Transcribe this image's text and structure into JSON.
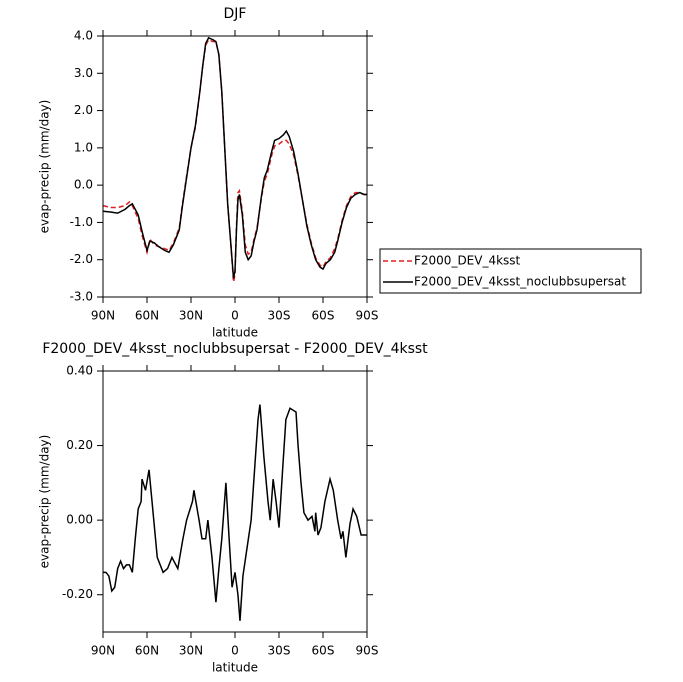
{
  "chart_data": [
    {
      "type": "line",
      "title": "DJF",
      "xlabel": "latitude",
      "ylabel": "evap-precip (mm/day)",
      "x": [
        90,
        85,
        80,
        75,
        72,
        70,
        66,
        63,
        60,
        58,
        55,
        52,
        48,
        45,
        42,
        38,
        36,
        33,
        30,
        27,
        24,
        22,
        20,
        18,
        15,
        13,
        11,
        9,
        7,
        5,
        3,
        1,
        0,
        -1,
        -2,
        -3,
        -5,
        -7,
        -9,
        -11,
        -13,
        -15,
        -18,
        -20,
        -22,
        -25,
        -27,
        -30,
        -33,
        -35,
        -37,
        -40,
        -43,
        -46,
        -49,
        -52,
        -55,
        -58,
        -60,
        -62,
        -65,
        -68,
        -70,
        -73,
        -76,
        -79,
        -82,
        -85,
        -88,
        -90
      ],
      "series": [
        {
          "name": "F2000_DEV_4ksst",
          "color": "#e02020",
          "style": "dashed",
          "values": [
            -0.55,
            -0.6,
            -0.6,
            -0.55,
            -0.45,
            -0.55,
            -0.9,
            -1.4,
            -1.8,
            -1.45,
            -1.6,
            -1.65,
            -1.7,
            -1.75,
            -1.55,
            -1.15,
            -0.55,
            0.25,
            1.0,
            1.55,
            2.5,
            3.2,
            3.75,
            3.9,
            3.85,
            3.85,
            3.5,
            2.5,
            1.0,
            -0.5,
            -1.5,
            -2.6,
            -2.4,
            -1.1,
            -0.2,
            -0.15,
            -0.7,
            -1.6,
            -1.85,
            -1.8,
            -1.45,
            -1.15,
            -0.35,
            0.1,
            0.3,
            0.8,
            1.05,
            1.1,
            1.2,
            1.2,
            1.1,
            0.8,
            0.25,
            -0.4,
            -1.05,
            -1.55,
            -1.95,
            -2.15,
            -2.2,
            -2.05,
            -1.95,
            -1.7,
            -1.45,
            -0.95,
            -0.55,
            -0.3,
            -0.2,
            -0.2,
            -0.25,
            -0.25
          ]
        },
        {
          "name": "F2000_DEV_4ksst_noclubbsupersat",
          "color": "#000000",
          "style": "solid",
          "values": [
            -0.7,
            -0.72,
            -0.75,
            -0.65,
            -0.55,
            -0.5,
            -0.8,
            -1.3,
            -1.75,
            -1.5,
            -1.55,
            -1.65,
            -1.75,
            -1.8,
            -1.6,
            -1.2,
            -0.6,
            0.2,
            1.0,
            1.6,
            2.5,
            3.2,
            3.8,
            3.95,
            3.9,
            3.85,
            3.5,
            2.5,
            1.0,
            -0.5,
            -1.5,
            -2.5,
            -2.3,
            -1.2,
            -0.4,
            -0.25,
            -0.8,
            -1.8,
            -2.0,
            -1.9,
            -1.5,
            -1.2,
            -0.3,
            0.2,
            0.4,
            0.9,
            1.2,
            1.25,
            1.35,
            1.45,
            1.3,
            0.9,
            0.3,
            -0.4,
            -1.1,
            -1.6,
            -2.0,
            -2.2,
            -2.25,
            -2.1,
            -2.0,
            -1.8,
            -1.5,
            -1.0,
            -0.6,
            -0.35,
            -0.25,
            -0.2,
            -0.25,
            -0.25
          ]
        }
      ],
      "xlim": [
        90,
        -90
      ],
      "xticks": [
        {
          "value": 90,
          "label": "90N"
        },
        {
          "value": 60,
          "label": "60N"
        },
        {
          "value": 30,
          "label": "30N"
        },
        0,
        {
          "value": -30,
          "label": "30S"
        },
        {
          "value": -60,
          "label": "60S"
        },
        {
          "value": -90,
          "label": "90S"
        }
      ],
      "ylim": [
        -3,
        4
      ],
      "yticks": [
        {
          "value": -3,
          "label": "-3.0"
        },
        {
          "value": -2,
          "label": "-2.0"
        },
        {
          "value": -1,
          "label": "-1.0"
        },
        {
          "value": 0,
          "label": "0.0"
        },
        {
          "value": 1,
          "label": "1.0"
        },
        {
          "value": 2,
          "label": "2.0"
        },
        {
          "value": 3,
          "label": "3.0"
        },
        {
          "value": 4,
          "label": "4.0"
        }
      ],
      "legend": "right"
    },
    {
      "type": "line",
      "title": "F2000_DEV_4ksst_noclubbsupersat - F2000_DEV_4ksst",
      "xlabel": "latitude",
      "ylabel": "evap-precip (mm/day)",
      "x": [
        90,
        88,
        86,
        84,
        82,
        80,
        78,
        76,
        74,
        72,
        70,
        68,
        66,
        64,
        63.4,
        61,
        58.6,
        53,
        49,
        46,
        43,
        39,
        35.5,
        33,
        29,
        28,
        24.5,
        22.5,
        20,
        18.5,
        15.7,
        13,
        11,
        9,
        6.2,
        4,
        2,
        0,
        -2,
        -3.4,
        -5.4,
        -8,
        -11,
        -13.6,
        -15.7,
        -17,
        -19.7,
        -22.5,
        -24,
        -26,
        -28,
        -30,
        -32.7,
        -34.7,
        -37.5,
        -41.6,
        -43,
        -45,
        -47,
        -49.8,
        -52.5,
        -54.5,
        -55,
        -56.6,
        -58.6,
        -61.3,
        -64.8,
        -67,
        -70,
        -72.3,
        -73.6,
        -75.6,
        -78.4,
        -80.5,
        -83,
        -86,
        -90
      ],
      "series": [
        {
          "name": null,
          "color": "#000000",
          "style": "solid",
          "values": [
            -0.14,
            -0.14,
            -0.15,
            -0.19,
            -0.18,
            -0.13,
            -0.11,
            -0.13,
            -0.12,
            -0.12,
            -0.14,
            -0.05,
            0.03,
            0.05,
            0.11,
            0.08,
            0.135,
            -0.1,
            -0.14,
            -0.13,
            -0.1,
            -0.13,
            -0.05,
            0.0,
            0.05,
            0.08,
            0.0,
            -0.05,
            -0.05,
            0.0,
            -0.1,
            -0.22,
            -0.13,
            -0.05,
            0.1,
            -0.05,
            -0.18,
            -0.14,
            -0.2,
            -0.27,
            -0.15,
            -0.08,
            0.0,
            0.15,
            0.27,
            0.31,
            0.17,
            0.05,
            0.0,
            0.11,
            0.05,
            -0.02,
            0.15,
            0.27,
            0.3,
            0.29,
            0.2,
            0.1,
            0.02,
            0.0,
            0.01,
            -0.03,
            0.02,
            -0.04,
            -0.02,
            0.05,
            0.11,
            0.08,
            0.0,
            -0.05,
            -0.03,
            -0.1,
            -0.01,
            0.03,
            0.01,
            -0.04,
            -0.04
          ]
        }
      ],
      "xlim": [
        90,
        -90
      ],
      "xticks": [
        {
          "value": 90,
          "label": "90N"
        },
        {
          "value": 60,
          "label": "60N"
        },
        {
          "value": 30,
          "label": "30N"
        },
        0,
        {
          "value": -30,
          "label": "30S"
        },
        {
          "value": -60,
          "label": "60S"
        },
        {
          "value": -90,
          "label": "90S"
        }
      ],
      "ylim": [
        -0.3,
        0.4
      ],
      "yticks": [
        {
          "value": -0.2,
          "label": "-0.20"
        },
        {
          "value": 0,
          "label": "0.00"
        },
        {
          "value": 0.2,
          "label": "0.20"
        },
        {
          "value": 0.4,
          "label": "0.40"
        }
      ]
    }
  ]
}
